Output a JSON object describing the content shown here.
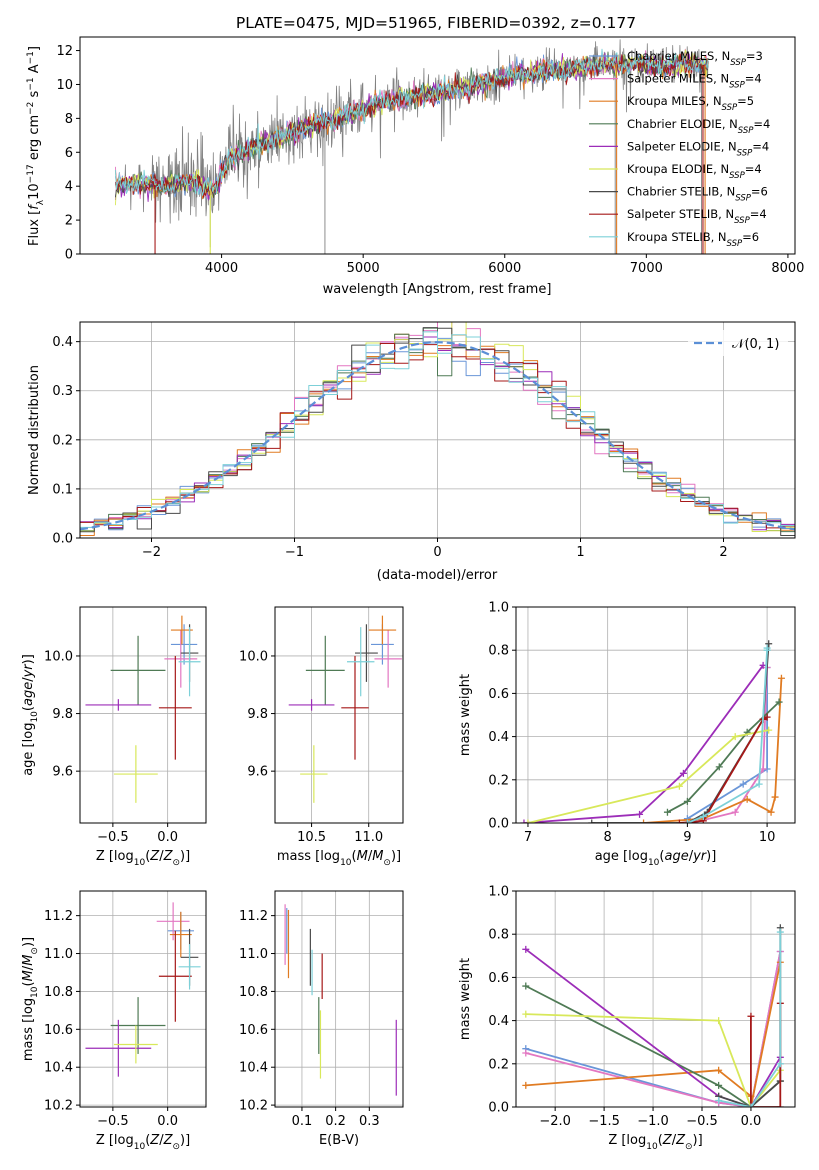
{
  "colors": {
    "chabrier_miles": "#6a96d8",
    "salpeter_miles": "#e377c2",
    "kroupa_miles": "#e07b22",
    "chabrier_elodie": "#4f7a55",
    "salpeter_elodie": "#9c2db8",
    "kroupa_elodie": "#d8e85a",
    "chabrier_stelib": "#4a4a4a",
    "salpeter_stelib": "#a51818",
    "kroupa_stelib": "#7dd0d8",
    "data": "#808080",
    "normal": "#5b8fd6",
    "grid": "#b0b0b0"
  },
  "chart_data": [
    {
      "type": "line",
      "title": "PLATE=0475, MJD=51965, FIBERID=0392, z=0.177",
      "xlabel": "wavelength [Angstrom, rest frame]",
      "ylabel": "Flux [f_λ 10^-17 erg cm^-2 s^-1 A^-1]",
      "xlim": [
        3000,
        8050
      ],
      "ylim": [
        0,
        12.8
      ],
      "xticks": [
        4000,
        5000,
        6000,
        7000,
        8000
      ],
      "yticks": [
        0,
        2,
        4,
        6,
        8,
        10,
        12
      ],
      "legend_position": "top-right",
      "legend": [
        {
          "key": "chabrier_miles",
          "label": "Chabrier MILES, N",
          "sub": "SSP",
          "suffix": "=3"
        },
        {
          "key": "salpeter_miles",
          "label": "Salpeter MILES, N",
          "sub": "SSP",
          "suffix": "=4"
        },
        {
          "key": "kroupa_miles",
          "label": "Kroupa MILES, N",
          "sub": "SSP",
          "suffix": "=5"
        },
        {
          "key": "chabrier_elodie",
          "label": "Chabrier ELODIE, N",
          "sub": "SSP",
          "suffix": "=4"
        },
        {
          "key": "salpeter_elodie",
          "label": "Salpeter ELODIE, N",
          "sub": "SSP",
          "suffix": "=4"
        },
        {
          "key": "kroupa_elodie",
          "label": "Kroupa ELODIE, N",
          "sub": "SSP",
          "suffix": "=4"
        },
        {
          "key": "chabrier_stelib",
          "label": "Chabrier STELIB, N",
          "sub": "SSP",
          "suffix": "=6"
        },
        {
          "key": "salpeter_stelib",
          "label": "Salpeter STELIB, N",
          "sub": "SSP",
          "suffix": "=4"
        },
        {
          "key": "kroupa_stelib",
          "label": "Kroupa STELIB, N",
          "sub": "SSP",
          "suffix": "=6"
        }
      ],
      "continuum_points": [
        [
          3250,
          4.0
        ],
        [
          3400,
          4.2
        ],
        [
          3600,
          4.0
        ],
        [
          3800,
          4.3
        ],
        [
          3950,
          3.7
        ],
        [
          4050,
          5.6
        ],
        [
          4200,
          6.2
        ],
        [
          4350,
          6.7
        ],
        [
          4500,
          7.2
        ],
        [
          4700,
          7.8
        ],
        [
          4900,
          8.2
        ],
        [
          5100,
          8.9
        ],
        [
          5300,
          9.2
        ],
        [
          5500,
          9.5
        ],
        [
          5700,
          9.8
        ],
        [
          5900,
          10.2
        ],
        [
          6100,
          10.6
        ],
        [
          6300,
          10.8
        ],
        [
          6500,
          11.0
        ],
        [
          6700,
          11.2
        ],
        [
          6900,
          11.2
        ],
        [
          7100,
          11.0
        ],
        [
          7300,
          11.3
        ],
        [
          7440,
          11.1
        ]
      ]
    },
    {
      "type": "line",
      "xlabel": "(data-model)/error",
      "ylabel": "Normed distribution",
      "xlim": [
        -2.5,
        2.5
      ],
      "ylim": [
        0,
        0.44
      ],
      "xticks": [
        -2,
        -1,
        0,
        1,
        2
      ],
      "yticks": [
        0.0,
        0.1,
        0.2,
        0.3,
        0.4
      ],
      "legend_position": "top-right",
      "normal_label": "𝒩(0, 1)",
      "bin_width": 0.1
    },
    {
      "type": "scatter",
      "xlabel": "Z [log10(Z/Z⊙)]",
      "ylabel": "age [log10(age/yr)]",
      "xlim": [
        -0.8,
        0.35
      ],
      "ylim": [
        9.42,
        10.17
      ],
      "xticks": [
        -0.5,
        0.0
      ],
      "yticks": [
        9.6,
        9.8,
        10.0
      ],
      "points": [
        {
          "key": "chabrier_miles",
          "x": 0.15,
          "xerr": 0.12,
          "y": 10.04,
          "yerr": 0.07
        },
        {
          "key": "salpeter_miles",
          "x": 0.12,
          "xerr": 0.15,
          "y": 9.99,
          "yerr": 0.1
        },
        {
          "key": "kroupa_miles",
          "x": 0.13,
          "xerr": 0.1,
          "y": 10.09,
          "yerr": 0.05
        },
        {
          "key": "chabrier_elodie",
          "x": -0.27,
          "xerr": 0.25,
          "y": 9.95,
          "yerr": 0.12
        },
        {
          "key": "salpeter_elodie",
          "x": -0.45,
          "xerr": 0.3,
          "y": 9.83,
          "yerr": 0.02
        },
        {
          "key": "kroupa_elodie",
          "x": -0.29,
          "xerr": 0.2,
          "y": 9.59,
          "yerr": 0.1
        },
        {
          "key": "chabrier_stelib",
          "x": 0.2,
          "xerr": 0.08,
          "y": 10.01,
          "yerr": 0.1
        },
        {
          "key": "salpeter_stelib",
          "x": 0.07,
          "xerr": 0.15,
          "y": 9.82,
          "yerr": 0.18
        },
        {
          "key": "kroupa_stelib",
          "x": 0.2,
          "xerr": 0.1,
          "y": 9.98,
          "yerr": 0.12
        }
      ]
    },
    {
      "type": "scatter",
      "xlabel": "mass [log10(M/M⊙)]",
      "xlim": [
        10.18,
        11.3
      ],
      "ylim": [
        9.42,
        10.17
      ],
      "xticks": [
        10.5,
        11.0
      ],
      "yticks": [
        9.6,
        9.8,
        10.0
      ],
      "points": [
        {
          "key": "chabrier_miles",
          "x": 11.12,
          "xerr": 0.1,
          "y": 10.04,
          "yerr": 0.07
        },
        {
          "key": "salpeter_miles",
          "x": 11.17,
          "xerr": 0.12,
          "y": 9.99,
          "yerr": 0.1
        },
        {
          "key": "kroupa_miles",
          "x": 11.12,
          "xerr": 0.12,
          "y": 10.09,
          "yerr": 0.05
        },
        {
          "key": "chabrier_elodie",
          "x": 10.62,
          "xerr": 0.17,
          "y": 9.95,
          "yerr": 0.12
        },
        {
          "key": "salpeter_elodie",
          "x": 10.5,
          "xerr": 0.2,
          "y": 9.83,
          "yerr": 0.02
        },
        {
          "key": "kroupa_elodie",
          "x": 10.52,
          "xerr": 0.12,
          "y": 9.59,
          "yerr": 0.1
        },
        {
          "key": "chabrier_stelib",
          "x": 10.98,
          "xerr": 0.1,
          "y": 10.01,
          "yerr": 0.1
        },
        {
          "key": "salpeter_stelib",
          "x": 10.88,
          "xerr": 0.12,
          "y": 9.82,
          "yerr": 0.18
        },
        {
          "key": "kroupa_stelib",
          "x": 10.93,
          "xerr": 0.12,
          "y": 9.98,
          "yerr": 0.12
        }
      ]
    },
    {
      "type": "line",
      "xlabel": "age [log10(age/yr)]",
      "ylabel": "mass weight",
      "xlim": [
        6.85,
        10.35
      ],
      "ylim": [
        0,
        1.0
      ],
      "xticks": [
        7,
        8,
        9,
        10
      ],
      "yticks": [
        0.0,
        0.2,
        0.4,
        0.6,
        0.8,
        1.0
      ],
      "series": [
        {
          "key": "chabrier_miles",
          "x": [
            9.0,
            9.7,
            10.0,
            10.0
          ],
          "y": [
            0.02,
            0.18,
            0.25,
            0.72
          ]
        },
        {
          "key": "salpeter_miles",
          "x": [
            9.05,
            9.6,
            9.95,
            10.0
          ],
          "y": [
            0.0,
            0.05,
            0.25,
            0.72
          ]
        },
        {
          "key": "kroupa_miles",
          "x": [
            8.45,
            9.2,
            9.75,
            10.05,
            10.1,
            10.18
          ],
          "y": [
            0.0,
            0.02,
            0.11,
            0.05,
            0.12,
            0.67
          ]
        },
        {
          "key": "chabrier_elodie",
          "x": [
            8.75,
            9.0,
            9.4,
            9.75,
            10.15
          ],
          "y": [
            0.05,
            0.1,
            0.26,
            0.42,
            0.56
          ]
        },
        {
          "key": "salpeter_elodie",
          "x": [
            6.95,
            8.4,
            8.95,
            9.95
          ],
          "y": [
            0.0,
            0.04,
            0.23,
            0.73
          ]
        },
        {
          "key": "kroupa_elodie",
          "x": [
            7.0,
            8.9,
            9.6,
            10.02
          ],
          "y": [
            0.0,
            0.17,
            0.4,
            0.43
          ]
        },
        {
          "key": "chabrier_stelib",
          "x": [
            7.8,
            9.0,
            9.25,
            9.95,
            10.02
          ],
          "y": [
            0.0,
            0.0,
            0.05,
            0.48,
            0.83
          ]
        },
        {
          "key": "salpeter_stelib",
          "x": [
            8.9,
            9.2,
            9.95,
            10.0
          ],
          "y": [
            0.0,
            0.01,
            0.48,
            0.49
          ]
        },
        {
          "key": "kroupa_stelib",
          "x": [
            9.0,
            9.2,
            9.9,
            10.0,
            10.0
          ],
          "y": [
            0.0,
            0.03,
            0.18,
            0.8,
            0.81
          ]
        }
      ]
    },
    {
      "type": "scatter",
      "xlabel": "Z [log10(Z/Z⊙)]",
      "ylabel": "mass [log10(M/M⊙)]",
      "xlim": [
        -0.8,
        0.35
      ],
      "ylim": [
        10.19,
        11.33
      ],
      "xticks": [
        -0.5,
        0.0
      ],
      "yticks": [
        10.2,
        10.4,
        10.6,
        10.8,
        11.0,
        11.2
      ],
      "points": [
        {
          "key": "chabrier_miles",
          "x": 0.12,
          "xerr": 0.12,
          "y": 11.12,
          "yerr": 0.1
        },
        {
          "key": "salpeter_miles",
          "x": 0.05,
          "xerr": 0.15,
          "y": 11.17,
          "yerr": 0.1
        },
        {
          "key": "kroupa_miles",
          "x": 0.12,
          "xerr": 0.1,
          "y": 11.1,
          "yerr": 0.12
        },
        {
          "key": "chabrier_elodie",
          "x": -0.27,
          "xerr": 0.25,
          "y": 10.62,
          "yerr": 0.15
        },
        {
          "key": "salpeter_elodie",
          "x": -0.45,
          "xerr": 0.3,
          "y": 10.5,
          "yerr": 0.15
        },
        {
          "key": "kroupa_elodie",
          "x": -0.29,
          "xerr": 0.2,
          "y": 10.52,
          "yerr": 0.1
        },
        {
          "key": "chabrier_stelib",
          "x": 0.2,
          "xerr": 0.08,
          "y": 10.98,
          "yerr": 0.15
        },
        {
          "key": "salpeter_stelib",
          "x": 0.07,
          "xerr": 0.15,
          "y": 10.88,
          "yerr": 0.24
        },
        {
          "key": "kroupa_stelib",
          "x": 0.2,
          "xerr": 0.1,
          "y": 10.93,
          "yerr": 0.12
        }
      ]
    },
    {
      "type": "scatter",
      "xlabel": "E(B-V)",
      "xlim": [
        0.02,
        0.4
      ],
      "ylim": [
        10.19,
        11.33
      ],
      "xticks": [
        0.1,
        0.2,
        0.3
      ],
      "yticks": [
        10.2,
        10.4,
        10.6,
        10.8,
        11.0,
        11.2
      ],
      "points": [
        {
          "key": "chabrier_miles",
          "x": 0.055,
          "y": 11.12,
          "yerr": 0.12
        },
        {
          "key": "salpeter_miles",
          "x": 0.05,
          "y": 11.1,
          "yerr": 0.16
        },
        {
          "key": "kroupa_miles",
          "x": 0.06,
          "y": 11.05,
          "yerr": 0.18
        },
        {
          "key": "chabrier_elodie",
          "x": 0.15,
          "y": 10.62,
          "yerr": 0.15
        },
        {
          "key": "salpeter_elodie",
          "x": 0.38,
          "y": 10.45,
          "yerr": 0.2
        },
        {
          "key": "kroupa_elodie",
          "x": 0.155,
          "y": 10.52,
          "yerr": 0.18
        },
        {
          "key": "chabrier_stelib",
          "x": 0.125,
          "y": 10.98,
          "yerr": 0.15
        },
        {
          "key": "salpeter_stelib",
          "x": 0.16,
          "y": 10.88,
          "yerr": 0.12
        },
        {
          "key": "kroupa_stelib",
          "x": 0.13,
          "y": 10.9,
          "yerr": 0.12
        }
      ]
    },
    {
      "type": "line",
      "xlabel": "Z [log10(Z/Z⊙)]",
      "ylabel": "mass weight",
      "xlim": [
        -2.4,
        0.45
      ],
      "ylim": [
        0,
        1.0
      ],
      "xticks": [
        -2.0,
        -1.5,
        -1.0,
        -0.5,
        0.0
      ],
      "yticks": [
        0.0,
        0.2,
        0.4,
        0.6,
        0.8,
        1.0
      ],
      "series": [
        {
          "key": "chabrier_miles",
          "x": [
            -2.3,
            -0.33,
            0.0,
            0.3
          ],
          "y": [
            0.27,
            0.02,
            0.0,
            0.72
          ]
        },
        {
          "key": "salpeter_miles",
          "x": [
            -2.3,
            -0.33,
            0.0,
            0.3
          ],
          "y": [
            0.25,
            0.02,
            0.0,
            0.72
          ]
        },
        {
          "key": "kroupa_miles",
          "x": [
            -2.3,
            -0.33,
            0.0,
            0.0,
            0.3
          ],
          "y": [
            0.1,
            0.17,
            0.05,
            0.0,
            0.67
          ]
        },
        {
          "key": "chabrier_elodie",
          "x": [
            -2.3,
            -0.33,
            0.0,
            0.3
          ],
          "y": [
            0.56,
            0.1,
            0.0,
            0.12
          ]
        },
        {
          "key": "salpeter_elodie",
          "x": [
            -2.3,
            -0.33,
            0.0,
            0.3
          ],
          "y": [
            0.73,
            0.05,
            0.0,
            0.23
          ]
        },
        {
          "key": "kroupa_elodie",
          "x": [
            -2.3,
            -0.33,
            0.0,
            0.3
          ],
          "y": [
            0.43,
            0.4,
            0.0,
            0.17
          ]
        },
        {
          "key": "chabrier_stelib",
          "x": [
            -0.33,
            0.0,
            0.3,
            0.3
          ],
          "y": [
            0.05,
            0.0,
            0.12,
            0.83
          ]
        },
        {
          "key": "salpeter_stelib",
          "x": [
            0.0,
            0.0,
            0.3,
            0.3
          ],
          "y": [
            0.42,
            0.0,
            0.0,
            0.48
          ]
        },
        {
          "key": "kroupa_stelib",
          "x": [
            -0.33,
            0.0,
            0.3,
            0.3
          ],
          "y": [
            0.03,
            0.0,
            0.2,
            0.81
          ]
        }
      ]
    }
  ]
}
